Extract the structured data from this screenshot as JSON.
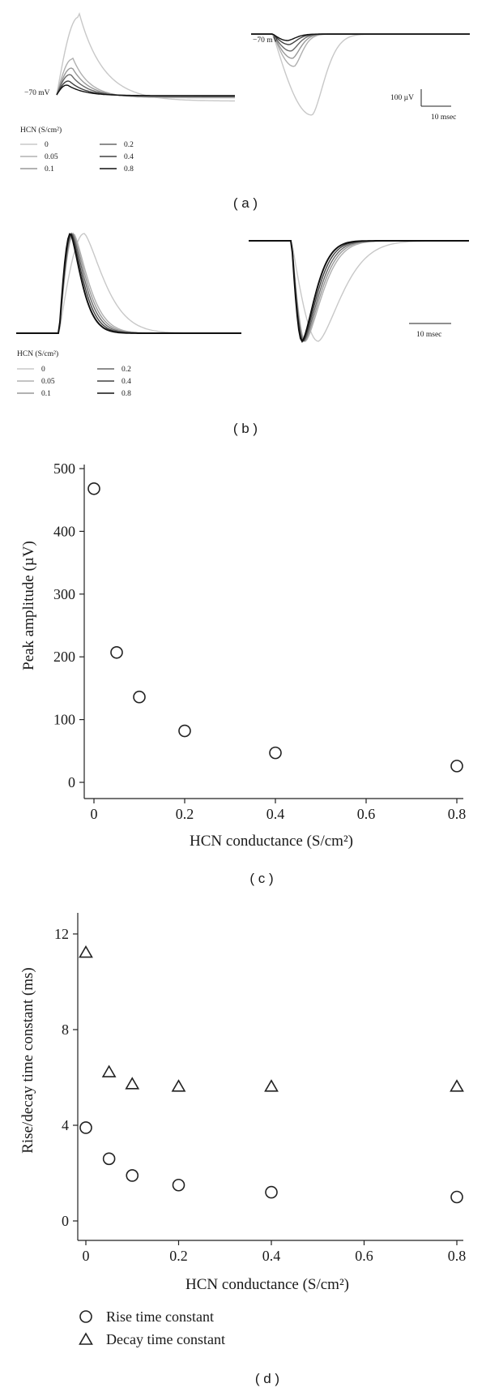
{
  "figure": {
    "background": "#ffffff",
    "trace_colors": [
      "#c8c8c8",
      "#b0b0b0",
      "#989898",
      "#686868",
      "#404040",
      "#101010"
    ]
  },
  "panel_a": {
    "letter": "( a )",
    "left_voltage": "−70 mV",
    "right_voltage": "−70 mV",
    "scale_amp": "100 µV",
    "scale_time": "10 msec",
    "legend_title": "HCN (S/cm²)",
    "legend": [
      "0",
      "0.05",
      "0.1",
      "0.2",
      "0.4",
      "0.8"
    ]
  },
  "panel_b": {
    "letter": "( b )",
    "scale_time": "10 msec",
    "legend_title": "HCN (S/cm²)",
    "legend": [
      "0",
      "0.05",
      "0.1",
      "0.2",
      "0.4",
      "0.8"
    ]
  },
  "chart_data": [
    {
      "type": "scatter",
      "panel": "c",
      "letter": "( c )",
      "xlabel": "HCN conductance (S/cm²)",
      "ylabel": "Peak amplitude (µV)",
      "xlim": [
        -0.02,
        0.82
      ],
      "ylim": [
        -10,
        500
      ],
      "xticks": [
        "0",
        "0.2",
        "0.4",
        "0.6",
        "0.8"
      ],
      "yticks": [
        "0",
        "100",
        "200",
        "300",
        "400",
        "500"
      ],
      "grid": false,
      "marker": "circle",
      "x": [
        0,
        0.05,
        0.1,
        0.2,
        0.4,
        0.8
      ],
      "y": [
        468,
        207,
        136,
        82,
        47,
        26
      ]
    },
    {
      "type": "scatter",
      "panel": "d",
      "letter": "( d )",
      "xlabel": "HCN conductance (S/cm²)",
      "ylabel": "Rise/decay time constant (ms)",
      "xlim": [
        -0.01,
        0.82
      ],
      "ylim": [
        -0.1,
        12.4
      ],
      "xticks": [
        "0",
        "0.2",
        "0.4",
        "0.6",
        "0.8"
      ],
      "yticks": [
        "0",
        "4",
        "8",
        "12"
      ],
      "grid": false,
      "legend_position": "bottom-left",
      "x": [
        0,
        0.05,
        0.1,
        0.2,
        0.4,
        0.8
      ],
      "series": [
        {
          "name": "Rise time constant",
          "marker": "circle",
          "values": [
            3.9,
            2.6,
            1.9,
            1.5,
            1.2,
            1.0
          ]
        },
        {
          "name": "Decay time constant",
          "marker": "triangle",
          "values": [
            11.2,
            6.2,
            5.7,
            5.6,
            5.6,
            5.6
          ]
        }
      ]
    }
  ]
}
